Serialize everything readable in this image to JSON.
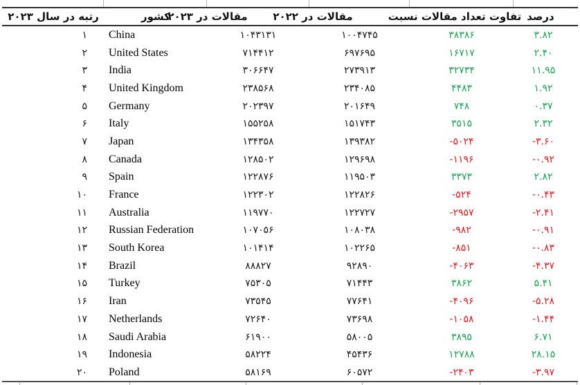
{
  "table": {
    "columns": [
      {
        "id": "rank",
        "label": "رتبه در سال ۲۰۲۳"
      },
      {
        "id": "country",
        "label": "کشور"
      },
      {
        "id": "articles_2023",
        "label": "مقالات در ۲۰۲۳"
      },
      {
        "id": "articles_2022",
        "label": "مقالات در ۲۰۲۲"
      },
      {
        "id": "diff",
        "label": "تفاوت تعداد مقالات نسبت"
      },
      {
        "id": "percent",
        "label": "درصد"
      }
    ],
    "colors": {
      "positive": "#1ea158",
      "negative": "#e11c23"
    },
    "rows": [
      {
        "rank": "۱",
        "country": "China",
        "a2023": "۱۰۴۳۱۳۱",
        "a2022": "۱۰۰۴۷۴۵",
        "diff": "۳۸۳۸۶",
        "pct": "۳.۸۲",
        "trend": "up"
      },
      {
        "rank": "۲",
        "country": "United States",
        "a2023": "۷۱۴۴۱۲",
        "a2022": "۶۹۷۶۹۵",
        "diff": "۱۶۷۱۷",
        "pct": "۲.۴۰",
        "trend": "up"
      },
      {
        "rank": "۳",
        "country": "India",
        "a2023": "۳۰۶۶۴۷",
        "a2022": "۲۷۳۹۱۳",
        "diff": "۳۲۷۳۴",
        "pct": "۱۱.۹۵",
        "trend": "up"
      },
      {
        "rank": "۴",
        "country": "United Kingdom",
        "a2023": "۲۳۸۵۶۸",
        "a2022": "۲۳۴۰۸۵",
        "diff": "۴۴۸۳",
        "pct": "۱.۹۲",
        "trend": "up"
      },
      {
        "rank": "۵",
        "country": "Germany",
        "a2023": "۲۰۲۳۹۷",
        "a2022": "۲۰۱۶۴۹",
        "diff": "۷۴۸",
        "pct": "۰.۳۷",
        "trend": "up"
      },
      {
        "rank": "۶",
        "country": "Italy",
        "a2023": "۱۵۵۲۵۸",
        "a2022": "۱۵۱۷۴۳",
        "diff": "۳۵۱۵",
        "pct": "۲.۳۲",
        "trend": "up"
      },
      {
        "rank": "۷",
        "country": "Japan",
        "a2023": "۱۳۴۳۵۸",
        "a2022": "۱۳۹۳۸۲",
        "diff": "-۵۰۲۴",
        "pct": "-۳.۶۰",
        "trend": "down"
      },
      {
        "rank": "۸",
        "country": "Canada",
        "a2023": "۱۲۸۵۰۲",
        "a2022": "۱۲۹۶۹۸",
        "diff": "-۱۱۹۶",
        "pct": "-۰.۹۲",
        "trend": "down"
      },
      {
        "rank": "۹",
        "country": "Spain",
        "a2023": "۱۲۲۸۷۶",
        "a2022": "۱۱۹۵۰۳",
        "diff": "۳۳۷۳",
        "pct": "۲.۸۲",
        "trend": "up"
      },
      {
        "rank": "۱۰",
        "country": "France",
        "a2023": "۱۲۲۳۰۲",
        "a2022": "۱۲۲۸۲۶",
        "diff": "-۵۲۴",
        "pct": "-۰.۴۳",
        "trend": "down"
      },
      {
        "rank": "۱۱",
        "country": "Australia",
        "a2023": "۱۱۹۷۷۰",
        "a2022": "۱۲۲۷۲۷",
        "diff": "-۲۹۵۷",
        "pct": "-۲.۴۱",
        "trend": "down"
      },
      {
        "rank": "۱۲",
        "country": "Russian Federation",
        "a2023": "۱۰۷۰۵۶",
        "a2022": "۱۰۸۰۳۸",
        "diff": "-۹۸۲",
        "pct": "-۰.۹۱",
        "trend": "down"
      },
      {
        "rank": "۱۳",
        "country": "South Korea",
        "a2023": "۱۰۱۴۱۴",
        "a2022": "۱۰۲۲۶۵",
        "diff": "-۸۵۱",
        "pct": "-۰.۸۳",
        "trend": "down"
      },
      {
        "rank": "۱۴",
        "country": "Brazil",
        "a2023": "۸۸۸۲۷",
        "a2022": "۹۲۸۹۰",
        "diff": "-۴۰۶۳",
        "pct": "-۴.۳۷",
        "trend": "down"
      },
      {
        "rank": "۱۵",
        "country": "Turkey",
        "a2023": "۷۵۳۰۵",
        "a2022": "۷۱۴۴۳",
        "diff": "۳۸۶۲",
        "pct": "۵.۴۱",
        "trend": "up"
      },
      {
        "rank": "۱۶",
        "country": "Iran",
        "a2023": "۷۳۵۴۵",
        "a2022": "۷۷۶۴۱",
        "diff": "-۴۰۹۶",
        "pct": "-۵.۲۸",
        "trend": "down"
      },
      {
        "rank": "۱۷",
        "country": "Netherlands",
        "a2023": "۷۲۶۴۰",
        "a2022": "۷۳۶۹۸",
        "diff": "-۱۰۵۸",
        "pct": "-۱.۴۴",
        "trend": "down"
      },
      {
        "rank": "۱۸",
        "country": "Saudi Arabia",
        "a2023": "۶۱۹۰۰",
        "a2022": "۵۸۰۰۵",
        "diff": "۳۸۹۵",
        "pct": "۶.۷۱",
        "trend": "up"
      },
      {
        "rank": "۱۹",
        "country": "Indonesia",
        "a2023": "۵۸۲۲۴",
        "a2022": "۴۵۴۳۶",
        "diff": "۱۲۷۸۸",
        "pct": "۲۸.۱۵",
        "trend": "up"
      },
      {
        "rank": "۲۰",
        "country": "Poland",
        "a2023": "۵۸۱۶۹",
        "a2022": "۶۰۵۷۲",
        "diff": "-۲۴۰۳",
        "pct": "-۳.۹۷",
        "trend": "down"
      }
    ]
  }
}
